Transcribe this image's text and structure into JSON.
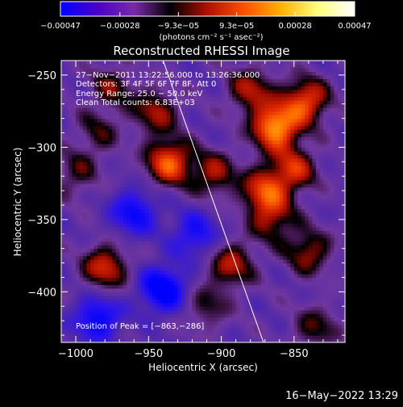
{
  "chart_data": {
    "type": "heatmap",
    "title": "Reconstructed RHESSI Image",
    "xlabel": "Heliocentric X (arcsec)",
    "ylabel": "Heliocentric Y (arcsec)",
    "xlim": [
      -1010,
      -815
    ],
    "ylim": [
      -435,
      -240
    ],
    "xticks": [
      -1000,
      -950,
      -900,
      -850
    ],
    "yticks": [
      -250,
      -300,
      -350,
      -400
    ],
    "xtick_labels": [
      "−1000",
      "−950",
      "−900",
      "−850"
    ],
    "ytick_labels": [
      "−250",
      "−300",
      "−350",
      "−400"
    ],
    "colorbar": {
      "min": -0.00047,
      "max": 0.00047,
      "ticks": [
        -0.00047,
        -0.00028,
        -9.3e-05,
        9.3e-05,
        0.00028,
        0.00047
      ],
      "tick_labels": [
        "−0.00047",
        "−0.00028",
        "−9.3e−05",
        "9.3e−05",
        "0.00028",
        "0.00047"
      ],
      "unit_label": "(photons cm⁻² s⁻¹ asec⁻²)",
      "colors": [
        "#0000ff",
        "#4b00c8",
        "#7a2aa8",
        "#000000",
        "#b01000",
        "#ff5000",
        "#ffb000",
        "#ffff80",
        "#ffffff"
      ]
    },
    "annotations": [
      "27−Nov−2011 13:22:56.000 to 13:26:36.000",
      "Detectors: 3F 4F 5F 6F 7F 8F, Att 0",
      "Energy Range: 25.0 − 50.0 keV",
      "Clean     Total counts: 6.83E+03"
    ],
    "peak": {
      "label": "Position of Peak = [−863,−286]",
      "x": -863,
      "y": -286
    },
    "limb_line": {
      "x": [
        -940,
        -871
      ],
      "y": [
        -240,
        -435
      ]
    },
    "sources": [
      {
        "x": -863,
        "y": -286,
        "value": 0.00047
      },
      {
        "x": -842,
        "y": -268,
        "value": 0.00036
      },
      {
        "x": -880,
        "y": -260,
        "value": 0.00025
      },
      {
        "x": -870,
        "y": -330,
        "value": 0.00033
      },
      {
        "x": -905,
        "y": -318,
        "value": 0.00024
      },
      {
        "x": -850,
        "y": -315,
        "value": 0.00028
      },
      {
        "x": -936,
        "y": -310,
        "value": 0.00038
      },
      {
        "x": -945,
        "y": -275,
        "value": 0.00024
      },
      {
        "x": -975,
        "y": -258,
        "value": 0.00018
      },
      {
        "x": -985,
        "y": -290,
        "value": 0.00015
      },
      {
        "x": -980,
        "y": -383,
        "value": 0.0003
      },
      {
        "x": -893,
        "y": -381,
        "value": 0.00026
      },
      {
        "x": -840,
        "y": -372,
        "value": 0.00024
      },
      {
        "x": -865,
        "y": -350,
        "value": 0.00022
      },
      {
        "x": -835,
        "y": -425,
        "value": 0.00018
      },
      {
        "x": -910,
        "y": -410,
        "value": 0.00016
      },
      {
        "x": -1000,
        "y": -318,
        "value": 0.00016
      },
      {
        "x": -960,
        "y": -345,
        "value": -0.00028
      },
      {
        "x": -940,
        "y": -398,
        "value": -0.00038
      },
      {
        "x": -985,
        "y": -418,
        "value": -0.0003
      },
      {
        "x": -918,
        "y": -360,
        "value": -0.00024
      }
    ]
  },
  "footer": {
    "timestamp": "16−May−2022 13:29"
  }
}
